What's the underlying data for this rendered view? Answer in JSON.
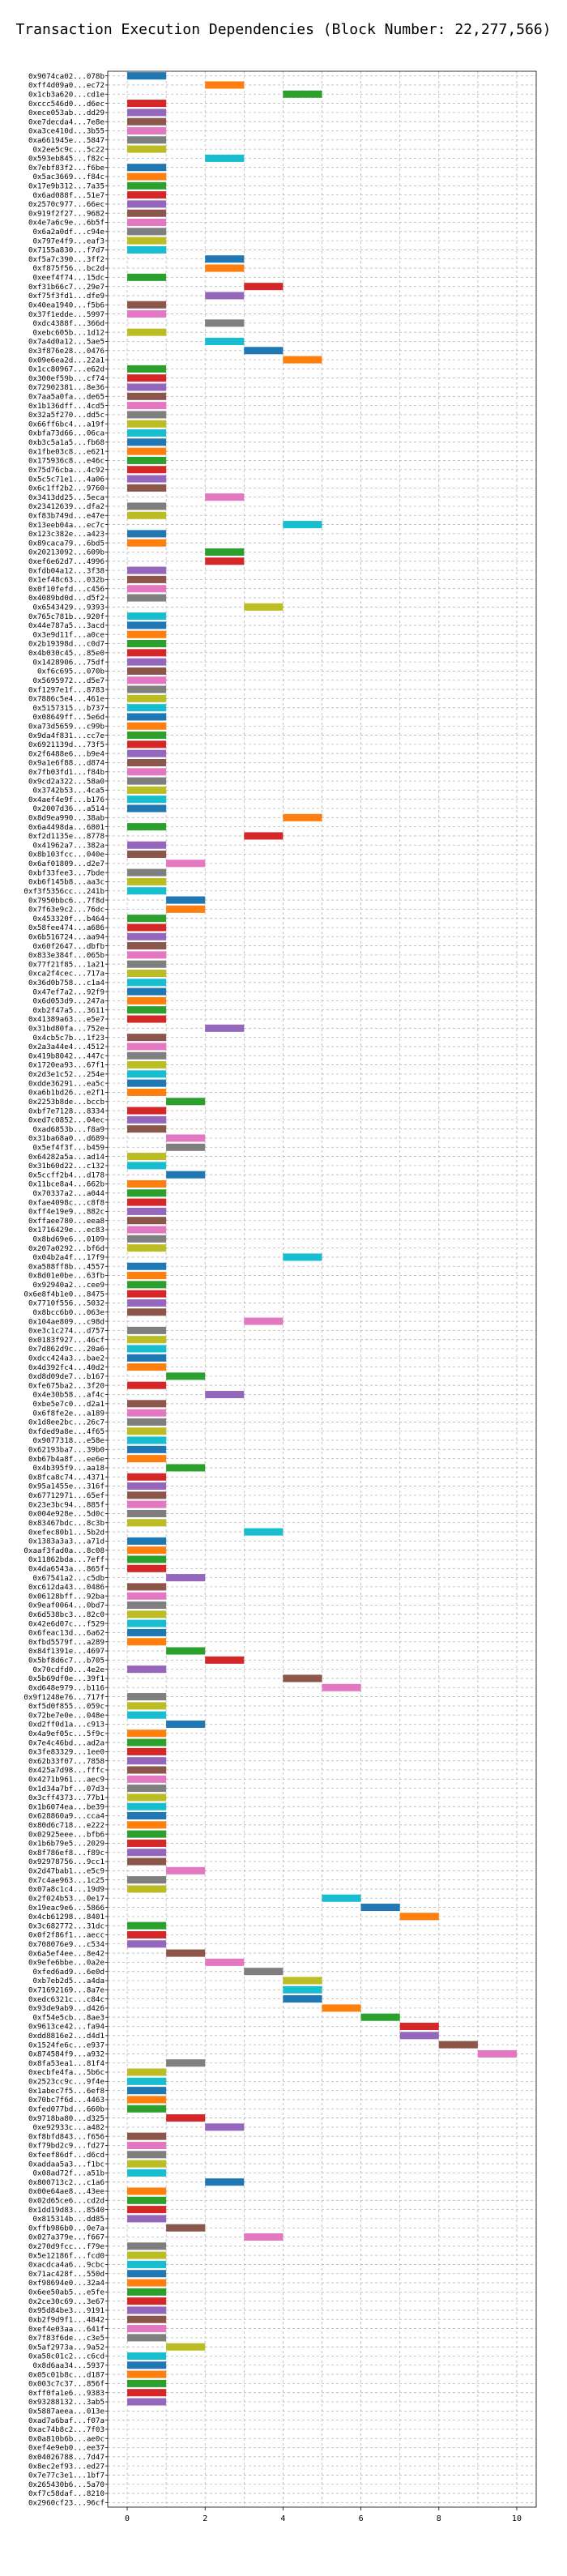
{
  "colors": [
    "#1f77b4",
    "#ff7f0e",
    "#2ca02c",
    "#d62728",
    "#9467bd",
    "#8c564b",
    "#e377c2",
    "#7f7f7f",
    "#bcbd22",
    "#17becf"
  ],
  "chart_data": {
    "type": "bar",
    "orientation": "horizontal",
    "title": "Transaction Execution Dependencies (Block Number: 22,277,566)",
    "xlabel": "",
    "ylabel": "",
    "xlim": [
      -0.5,
      10.5
    ],
    "xticks": [
      0,
      2,
      4,
      6,
      8,
      10
    ],
    "grid": true,
    "legend": "none",
    "categories": [
      "0x9074ca02...078b",
      "0xff4d09a0...ec72",
      "0x1cb3a620...cd1e",
      "0xccc546d0...d6ec",
      "0xece053ab...dd29",
      "0xe7decda4...7e8e",
      "0xa3ce410d...3b55",
      "0xa661945e...5847",
      "0x2ee5c9c...5c22",
      "0x593eb845...f82c",
      "0x7ebf83f2...f6be",
      "0x5ac3669...f84c",
      "0x17e9b312...7a35",
      "0x6ad088f...51e7",
      "0x2570c977...66ec",
      "0x919f2f27...9682",
      "0x4e7a6c9e...6b5f",
      "0x6a2a0df...c94e",
      "0x797e4f9...eaf3",
      "0x7155a830...f7d7",
      "0xf5a7c390...3ff2",
      "0xf875f56...bc2d",
      "0xeef4f74...15dc",
      "0xf31b66c7...29e7",
      "0xf75f3fd1...dfe9",
      "0x40ea1940...f5b6",
      "0x37f1edde...5997",
      "0xdc4388f...366d",
      "0xebc605b...1d12",
      "0x7a4d0a12...5ae5",
      "0x3f876e28...0476",
      "0x09e6ea2d...22a1",
      "0x1cc80967...e62d",
      "0x300ef59b...cf74",
      "0x72902381...8e36",
      "0x7aa5a0fa...de65",
      "0x1b136dff...4cd5",
      "0x32a5f270...dd5c",
      "0x66ff6bc4...a19f",
      "0xbfa73d66...06ca",
      "0xb3c5a1a5...fb68",
      "0x1fbe03c8...e621",
      "0x175936c8...e46c",
      "0x75d76cba...4c92",
      "0x5c5c71e1...4a06",
      "0x6c1ff2b2...9760",
      "0x3413dd25...5eca",
      "0x23412639...dfa2",
      "0xf83b749d...e47e",
      "0x13eeb04a...ec7c",
      "0x123c382e...a423",
      "0x89caca79...6bd5",
      "0x20213092...609b",
      "0xef6e62d7...4996",
      "0xfdb04a12...3f38",
      "0x1ef48c63...032b",
      "0x0f10fefd...c456",
      "0x4089bd0d...d5f2",
      "0x6543429...9393",
      "0x765c781b...920f",
      "0x44e787a5...3acd",
      "0x3e9d11f...a0ce",
      "0x2b19398d...c0d7",
      "0x4b030c45...85e0",
      "0x1428906...75df",
      "0xf6c695...070b",
      "0x5695972...d5e7",
      "0xf1297e1f...8783",
      "0x7886c5e4...461e",
      "0x5157315...b737",
      "0x08649ff...5e6d",
      "0xa73d5659...c99b",
      "0x9da4f831...cc7e",
      "0x6921139d...73f5",
      "0x2f6488e6...b9e4",
      "0x9a1e6f88...d874",
      "0x7fb03fd1...f84b",
      "0x9cd2a322...58a0",
      "0x3742b53...4ca5",
      "0x4aef4e9f...b176",
      "0x2007d36...a514",
      "0x8d9ea990...38ab",
      "0x6a4498da...6801",
      "0xf2d1135e...8778",
      "0x41962a7...382a",
      "0x8b103fcc...040e",
      "0x6af01809...d2e7",
      "0xbf33fee3...7bde",
      "0xb6f145b8...aa3c",
      "0xf3f5356cc...241b",
      "0x7950bbc6...7f8d",
      "0x7f63e9c2...76dc",
      "0x453320f...b464",
      "0x58fee474...a686",
      "0x6b516724...aa94",
      "0x60f2647...dbfb",
      "0x833e384f...065b",
      "0x77f21f85...1a21",
      "0xca2f4cec...717a",
      "0x36d0b758...c1a4",
      "0x47ef7a2...92f9",
      "0x6d053d9...247a",
      "0xb2f47a5...3611",
      "0x41389a63...e5e7",
      "0x31bd80fa...752e",
      "0x4cb5c7b...1f23",
      "0x2a3a44e4...4512",
      "0x419b8042...447c",
      "0x1720ea93...67f1",
      "0x2d3e1c52...254e",
      "0xdde36291...ea5c",
      "0xa6b1bd26...e2f1",
      "0x2253b8de...bccb",
      "0xbf7e7128...8334",
      "0xed7c0852...04ec",
      "0xad6853b...f8a9",
      "0x31ba68a0...d689",
      "0x5ef4f3f...b459",
      "0x64282a5a...ad14",
      "0x31b60d22...c132",
      "0x5ccff2b4...d178",
      "0x11bce8a4...662b",
      "0x70337a2...a044",
      "0xfae4098c...c8f8",
      "0xff4e19e9...882c",
      "0xffaee780...eea8",
      "0x1716429e...ec83",
      "0x8bd69e6...0109",
      "0x207a0292...bf6d",
      "0x04b2a4f...17f9",
      "0xa588ff8b...4557",
      "0x8d01e0be...63fb",
      "0x92940a2...cee9",
      "0x6e8f4b1e0...8475",
      "0x7710f556...5032",
      "0x8bcc6b0...063e",
      "0x104ae809...c98d",
      "0xe3c1c274...d757",
      "0x0183f927...46cf",
      "0x7d862d9c...20a6",
      "0xdcc424a3...bae2",
      "0x4d392fc4...40d2",
      "0xd8d09de7...b167",
      "0xfe675ba2...3f20",
      "0x4e30b58...af4c",
      "0xbe5e7c0...d2a1",
      "0x6f8fe2e...a189",
      "0x1d8ee2bc...26c7",
      "0xfded9a8e...4f65",
      "0x9077318...e58e",
      "0x62193ba7...39b0",
      "0xb67b4a8f...ee6e",
      "0x4b395f9...aa18",
      "0x8fca8c74...4371",
      "0x95a1455e...316f",
      "0x67712971...65ef",
      "0x23e3bc94...885f",
      "0x004e928e...5d0c",
      "0x83467bdc...8c3b",
      "0xefec80b1...5b2d",
      "0x1383a3a3...a71d",
      "0xaaf3fad0a...8c08",
      "0x11862bda...7eff",
      "0x4da6543a...865f",
      "0x67541a2...c5db",
      "0xc612da43...0486",
      "0x06128bff...92ba",
      "0x9eaf0064...0bd7",
      "0x6d538bc3...82c0",
      "0x42e6d07c...f529",
      "0x6feac13d...6a62",
      "0xfbd5579f...a289",
      "0x84f1391e...4697",
      "0x5bf8d6c7...b705",
      "0x70cdfd0...4e2e",
      "0x5b69df0e...39f1",
      "0xd648e979...b116",
      "0x9f1248e76...717f",
      "0xf5d0f855...059c",
      "0x72be7e0e...048e",
      "0xd2ff0d1a...c913",
      "0x4a9ef05c...5f9c",
      "0x7e4c46bd...ad2a",
      "0x3fe83329...1ee0",
      "0x62b33f07...7858",
      "0x425a7d98...fffc",
      "0x4271b961...aec9",
      "0x1d34a7bf...07d3",
      "0x3cff4373...77b1",
      "0x1b6074ea...be39",
      "0x628860a9...cca4",
      "0x80d6c718...e222",
      "0x02925eee...bfb6",
      "0x1b6b79e5...2029",
      "0x8f786ef8...f89c",
      "0x92978756...9cc1",
      "0x2d47bab1...e5c9",
      "0x7c4ae963...1c25",
      "0x07a8c1c4...19d9",
      "0x2f024b53...0e17",
      "0x19eac9e6...5866",
      "0x4cb61298...8401",
      "0x3c682772...31dc",
      "0x0f2f86f1...aecc",
      "0x708076e9...c534",
      "0x6a5ef4ee...8e42",
      "0x9efe6bbe...0a2e",
      "0xfed6ad9...6e0d",
      "0xb7eb2d5...a4da",
      "0x71692169...8a7e",
      "0xedc6321c...c84c",
      "0x93de9ab9...d426",
      "0xf54e5cb...8ae3",
      "0x9613ce42...fa94",
      "0xdd8816e2...d4d1",
      "0x1524fe6c...e937",
      "0x874584f9...a932",
      "0x8fa53ea1...81f4",
      "0xecbfe4fa...5b6c",
      "0x2523cc9c...9f4e",
      "0x1abec7f5...6ef8",
      "0x70bc7f6d...4463",
      "0xfed077bd...660b",
      "0x9718ba80...d325",
      "0xe92933c...a482",
      "0xf8bfd843...f656",
      "0xf79bd2c9...fd27",
      "0xfeef86df...d6cd",
      "0xaddaa5a3...f1bc",
      "0x08ad72f...a51b",
      "0x800713c2...c1a6",
      "0x00e64ae8...43ee",
      "0x02d65ce6...cd2d",
      "0x1dd19d83...8540",
      "0x815314b...dd85",
      "0xffb986b0...0e7a",
      "0x027a379e...f667",
      "0x270d9fcc...f79e",
      "0x5e12186f...fcd0",
      "0xacdca4a6...9cbc",
      "0x71ac428f...550d",
      "0xf98694e0...32a4",
      "0x6ee50ab5...e5fe",
      "0x2ce30c69...3e67",
      "0x95d84be3...9191",
      "0xb2f9d9f1...4842",
      "0xef4e03aa...641f",
      "0x7f83f6de...c3e5",
      "0x5af2973a...9a52",
      "0xa58c01c2...c6cd",
      "0x8d6aa34...5937",
      "0x05c01b8c...d187",
      "0x003c7c37...856f",
      "0xff0fa1e6...9383",
      "0x93288132...3ab5",
      "0x5887aeea...013e",
      "0xad7a6baf...f07a",
      "0xac74b8c2...7f03",
      "0x0a810b6b...ae0c",
      "0xef4e9eb0...ee37",
      "0x04026788...7d47",
      "0x8ec2ef93...ed27",
      "0x7e77c3e1...1bf7",
      "0x265430b6...5a70",
      "0xf7c58daf...8210",
      "0x2960cf23...96cf"
    ],
    "bars": [
      [
        0,
        1
      ],
      [
        2,
        1
      ],
      [
        4,
        1
      ],
      [
        0,
        1
      ],
      [
        0,
        1
      ],
      [
        0,
        1
      ],
      [
        0,
        1
      ],
      [
        0,
        1
      ],
      [
        0,
        1
      ],
      [
        2,
        1
      ],
      [
        0,
        1
      ],
      [
        0,
        1
      ],
      [
        0,
        1
      ],
      [
        0,
        1
      ],
      [
        0,
        1
      ],
      [
        0,
        1
      ],
      [
        0,
        1
      ],
      [
        0,
        1
      ],
      [
        0,
        1
      ],
      [
        0,
        1
      ],
      [
        2,
        1
      ],
      [
        2,
        1
      ],
      [
        0,
        1
      ],
      [
        3,
        1
      ],
      [
        2,
        1
      ],
      [
        0,
        1
      ],
      [
        0,
        1
      ],
      [
        2,
        1
      ],
      [
        0,
        1
      ],
      [
        2,
        1
      ],
      [
        3,
        1
      ],
      [
        4,
        1
      ],
      [
        0,
        1
      ],
      [
        0,
        1
      ],
      [
        0,
        1
      ],
      [
        0,
        1
      ],
      [
        0,
        1
      ],
      [
        0,
        1
      ],
      [
        0,
        1
      ],
      [
        0,
        1
      ],
      [
        0,
        1
      ],
      [
        0,
        1
      ],
      [
        0,
        1
      ],
      [
        0,
        1
      ],
      [
        0,
        1
      ],
      [
        0,
        1
      ],
      [
        2,
        1
      ],
      [
        0,
        1
      ],
      [
        0,
        1
      ],
      [
        4,
        1
      ],
      [
        0,
        1
      ],
      [
        0,
        1
      ],
      [
        2,
        1
      ],
      [
        2,
        1
      ],
      [
        0,
        1
      ],
      [
        0,
        1
      ],
      [
        0,
        1
      ],
      [
        0,
        1
      ],
      [
        3,
        1
      ],
      [
        0,
        1
      ],
      [
        0,
        1
      ],
      [
        0,
        1
      ],
      [
        0,
        1
      ],
      [
        0,
        1
      ],
      [
        0,
        1
      ],
      [
        0,
        1
      ],
      [
        0,
        1
      ],
      [
        0,
        1
      ],
      [
        0,
        1
      ],
      [
        0,
        1
      ],
      [
        0,
        1
      ],
      [
        0,
        1
      ],
      [
        0,
        1
      ],
      [
        0,
        1
      ],
      [
        0,
        1
      ],
      [
        0,
        1
      ],
      [
        0,
        1
      ],
      [
        0,
        1
      ],
      [
        0,
        1
      ],
      [
        0,
        1
      ],
      [
        0,
        1
      ],
      [
        4,
        1
      ],
      [
        0,
        1
      ],
      [
        3,
        1
      ],
      [
        0,
        1
      ],
      [
        0,
        1
      ],
      [
        1,
        1
      ],
      [
        0,
        1
      ],
      [
        0,
        1
      ],
      [
        0,
        1
      ],
      [
        1,
        1
      ],
      [
        1,
        1
      ],
      [
        0,
        1
      ],
      [
        0,
        1
      ],
      [
        0,
        1
      ],
      [
        0,
        1
      ],
      [
        0,
        1
      ],
      [
        0,
        1
      ],
      [
        0,
        1
      ],
      [
        0,
        1
      ],
      [
        0,
        1
      ],
      [
        0,
        1
      ],
      [
        0,
        1
      ],
      [
        0,
        1
      ],
      [
        2,
        1
      ],
      [
        0,
        1
      ],
      [
        0,
        1
      ],
      [
        0,
        1
      ],
      [
        0,
        1
      ],
      [
        0,
        1
      ],
      [
        0,
        1
      ],
      [
        0,
        1
      ],
      [
        1,
        1
      ],
      [
        0,
        1
      ],
      [
        0,
        1
      ],
      [
        0,
        1
      ],
      [
        1,
        1
      ],
      [
        1,
        1
      ],
      [
        0,
        1
      ],
      [
        0,
        1
      ],
      [
        1,
        1
      ],
      [
        0,
        1
      ],
      [
        0,
        1
      ],
      [
        0,
        1
      ],
      [
        0,
        1
      ],
      [
        0,
        1
      ],
      [
        0,
        1
      ],
      [
        0,
        1
      ],
      [
        0,
        1
      ],
      [
        4,
        1
      ],
      [
        0,
        1
      ],
      [
        0,
        1
      ],
      [
        0,
        1
      ],
      [
        0,
        1
      ],
      [
        0,
        1
      ],
      [
        0,
        1
      ],
      [
        3,
        1
      ],
      [
        0,
        1
      ],
      [
        0,
        1
      ],
      [
        0,
        1
      ],
      [
        0,
        1
      ],
      [
        0,
        1
      ],
      [
        1,
        1
      ],
      [
        0,
        1
      ],
      [
        2,
        1
      ],
      [
        0,
        1
      ],
      [
        0,
        1
      ],
      [
        0,
        1
      ],
      [
        0,
        1
      ],
      [
        0,
        1
      ],
      [
        0,
        1
      ],
      [
        0,
        1
      ],
      [
        1,
        1
      ],
      [
        0,
        1
      ],
      [
        0,
        1
      ],
      [
        0,
        1
      ],
      [
        0,
        1
      ],
      [
        0,
        1
      ],
      [
        0,
        1
      ],
      [
        3,
        1
      ],
      [
        0,
        1
      ],
      [
        0,
        1
      ],
      [
        0,
        1
      ],
      [
        0,
        1
      ],
      [
        1,
        1
      ],
      [
        0,
        1
      ],
      [
        0,
        1
      ],
      [
        0,
        1
      ],
      [
        0,
        1
      ],
      [
        0,
        1
      ],
      [
        0,
        1
      ],
      [
        0,
        1
      ],
      [
        1,
        1
      ],
      [
        2,
        1
      ],
      [
        0,
        1
      ],
      [
        4,
        1
      ],
      [
        5,
        1
      ],
      [
        0,
        1
      ],
      [
        0,
        1
      ],
      [
        0,
        1
      ],
      [
        1,
        1
      ],
      [
        0,
        1
      ],
      [
        0,
        1
      ],
      [
        0,
        1
      ],
      [
        0,
        1
      ],
      [
        0,
        1
      ],
      [
        0,
        1
      ],
      [
        0,
        1
      ],
      [
        0,
        1
      ],
      [
        0,
        1
      ],
      [
        0,
        1
      ],
      [
        0,
        1
      ],
      [
        0,
        1
      ],
      [
        0,
        1
      ],
      [
        0,
        1
      ],
      [
        0,
        1
      ],
      [
        1,
        1
      ],
      [
        0,
        1
      ],
      [
        0,
        1
      ],
      [
        5,
        1
      ],
      [
        6,
        1
      ],
      [
        7,
        1
      ],
      [
        0,
        1
      ],
      [
        0,
        1
      ],
      [
        0,
        1
      ],
      [
        1,
        1
      ],
      [
        2,
        1
      ],
      [
        3,
        1
      ],
      [
        4,
        1
      ],
      [
        4,
        1
      ],
      [
        4,
        1
      ],
      [
        5,
        1
      ],
      [
        6,
        1
      ],
      [
        7,
        1
      ],
      [
        7,
        1
      ],
      [
        8,
        1
      ],
      [
        9,
        1
      ],
      [
        1,
        1
      ],
      [
        0,
        1
      ],
      [
        0,
        1
      ],
      [
        0,
        1
      ],
      [
        0,
        1
      ],
      [
        0,
        1
      ],
      [
        1,
        1
      ],
      [
        2,
        1
      ],
      [
        0,
        1
      ],
      [
        0,
        1
      ],
      [
        0,
        1
      ],
      [
        0,
        1
      ],
      [
        0,
        1
      ],
      [
        2,
        1
      ],
      [
        0,
        1
      ],
      [
        0,
        1
      ],
      [
        0,
        1
      ],
      [
        0,
        1
      ],
      [
        1,
        1
      ],
      [
        3,
        1
      ],
      [
        0,
        1
      ],
      [
        0,
        1
      ],
      [
        0,
        1
      ],
      [
        0,
        1
      ],
      [
        0,
        1
      ],
      [
        0,
        1
      ],
      [
        0,
        1
      ],
      [
        0,
        1
      ],
      [
        0,
        1
      ],
      [
        0,
        1
      ],
      [
        0,
        1
      ],
      [
        1,
        1
      ],
      [
        0,
        1
      ],
      [
        0,
        1
      ],
      [
        0,
        1
      ],
      [
        0,
        1
      ],
      [
        0,
        1
      ],
      [
        0,
        1
      ]
    ]
  }
}
